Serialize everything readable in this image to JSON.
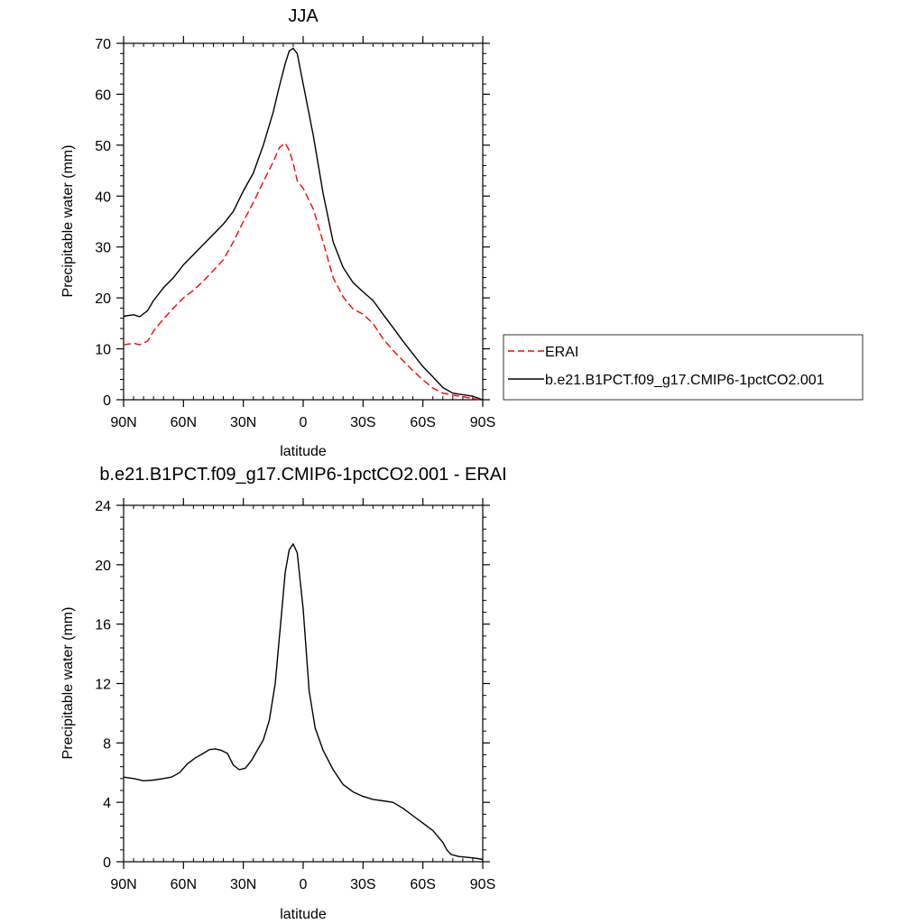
{
  "chart_data": [
    {
      "type": "line",
      "title": "JJA",
      "xlabel": "latitude",
      "ylabel": "Precipitable water (mm)",
      "xlim": [
        90,
        -90
      ],
      "ylim": [
        0,
        70
      ],
      "xticks": [
        90,
        60,
        30,
        0,
        -30,
        -60,
        -90
      ],
      "xtick_labels": [
        "90N",
        "60N",
        "30N",
        "0",
        "30S",
        "60S",
        "90S"
      ],
      "yticks": [
        0,
        10,
        20,
        30,
        40,
        50,
        60,
        70
      ],
      "ytick_labels": [
        "0",
        "10",
        "20",
        "30",
        "40",
        "50",
        "60",
        "70"
      ],
      "legend": {
        "placement": "right",
        "entries": [
          "ERAI",
          "b.e21.B1PCT.f09_g17.CMIP6-1pctCO2.001"
        ]
      },
      "series": [
        {
          "name": "ERAI",
          "style": "dashed",
          "color": "#ff0000",
          "x": [
            90,
            85,
            82,
            78,
            75,
            70,
            65,
            60,
            55,
            50,
            45,
            40,
            35,
            30,
            25,
            20,
            15,
            12,
            9,
            7,
            5,
            3,
            0,
            -5,
            -10,
            -15,
            -20,
            -25,
            -30,
            -35,
            -40,
            -45,
            -50,
            -55,
            -60,
            -65,
            -70,
            -75,
            -80,
            -85,
            -90
          ],
          "y": [
            10.8,
            11.1,
            10.8,
            11.5,
            13.5,
            15.9,
            18.0,
            20.0,
            21.5,
            23.3,
            25.4,
            27.5,
            31.0,
            35.0,
            38.7,
            42.8,
            46.7,
            49.5,
            50.4,
            49.0,
            46.5,
            43.0,
            41.5,
            37.5,
            31.0,
            24.0,
            20.2,
            17.8,
            16.8,
            15.0,
            12.0,
            9.7,
            7.7,
            5.7,
            3.9,
            2.3,
            1.3,
            0.9,
            0.6,
            0.2,
            0.0
          ]
        },
        {
          "name": "b.e21.B1PCT.f09_g17.CMIP6-1pctCO2.001",
          "style": "solid",
          "color": "#000000",
          "x": [
            90,
            85,
            82,
            78,
            75,
            70,
            65,
            60,
            55,
            50,
            45,
            40,
            35,
            30,
            25,
            20,
            15,
            12,
            9,
            7,
            5,
            3,
            0,
            -5,
            -10,
            -15,
            -20,
            -25,
            -30,
            -35,
            -40,
            -45,
            -50,
            -55,
            -60,
            -65,
            -70,
            -75,
            -80,
            -85,
            -90
          ],
          "y": [
            16.4,
            16.7,
            16.3,
            17.5,
            19.5,
            22.0,
            24.0,
            26.5,
            28.5,
            30.5,
            32.5,
            34.5,
            37.0,
            41.0,
            44.5,
            50.0,
            56.5,
            61.5,
            66.0,
            68.5,
            69.0,
            68.0,
            62.0,
            52.0,
            40.5,
            31.0,
            26.0,
            23.0,
            21.2,
            19.5,
            16.8,
            14.2,
            11.5,
            9.0,
            6.5,
            4.5,
            2.4,
            1.3,
            1.0,
            0.7,
            0.0
          ]
        }
      ]
    },
    {
      "type": "line",
      "title": "b.e21.B1PCT.f09_g17.CMIP6-1pctCO2.001 - ERAI",
      "xlabel": "latitude",
      "ylabel": "Precipitable water (mm)",
      "xlim": [
        90,
        -90
      ],
      "ylim": [
        0,
        24
      ],
      "xticks": [
        90,
        60,
        30,
        0,
        -30,
        -60,
        -90
      ],
      "xtick_labels": [
        "90N",
        "60N",
        "30N",
        "0",
        "30S",
        "60S",
        "90S"
      ],
      "yticks": [
        0,
        4,
        8,
        12,
        16,
        20,
        24
      ],
      "ytick_labels": [
        "0",
        "4",
        "8",
        "12",
        "16",
        "20",
        "24"
      ],
      "series": [
        {
          "name": "b.e21.B1PCT.f09_g17.CMIP6-1pctCO2.001 - ERAI",
          "style": "solid",
          "color": "#000000",
          "x": [
            90,
            85,
            80,
            75,
            70,
            66,
            62,
            58,
            54,
            50,
            47,
            44,
            41,
            38,
            35,
            32,
            29,
            26,
            23,
            20,
            17,
            14,
            11,
            9,
            7,
            5,
            3,
            0,
            -3,
            -6,
            -10,
            -15,
            -20,
            -25,
            -30,
            -35,
            -40,
            -45,
            -50,
            -55,
            -60,
            -65,
            -70,
            -72,
            -74,
            -78,
            -82,
            -86,
            -90
          ],
          "y": [
            5.7,
            5.6,
            5.45,
            5.5,
            5.6,
            5.7,
            6.0,
            6.6,
            7.0,
            7.3,
            7.55,
            7.6,
            7.5,
            7.3,
            6.5,
            6.2,
            6.3,
            6.8,
            7.5,
            8.2,
            9.5,
            12.0,
            16.5,
            19.5,
            21.0,
            21.4,
            20.8,
            17.0,
            11.5,
            9.0,
            7.5,
            6.2,
            5.2,
            4.7,
            4.4,
            4.2,
            4.1,
            4.0,
            3.6,
            3.1,
            2.6,
            2.1,
            1.3,
            0.8,
            0.5,
            0.35,
            0.3,
            0.25,
            0.15
          ]
        }
      ]
    }
  ]
}
